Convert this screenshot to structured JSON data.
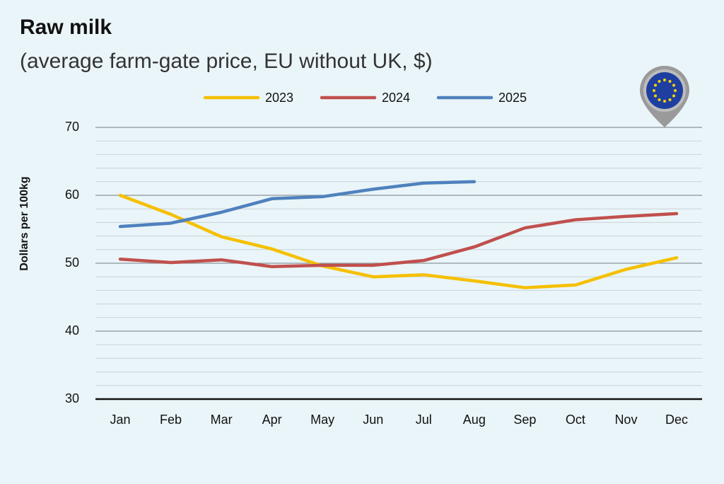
{
  "chart_data": {
    "type": "line",
    "title": "Raw milk",
    "subtitle": "(average farm-gate price, EU without UK, $)",
    "y_label": "Dollars per 100kg",
    "categories": [
      "Jan",
      "Feb",
      "Mar",
      "Apr",
      "May",
      "Jun",
      "Jul",
      "Aug",
      "Sep",
      "Oct",
      "Nov",
      "Dec"
    ],
    "series": [
      {
        "name": "2023",
        "color": "#f5c000",
        "values": [
          60.0,
          57.2,
          53.9,
          52.1,
          49.6,
          48.0,
          48.3,
          47.4,
          46.4,
          46.8,
          49.1,
          50.8
        ]
      },
      {
        "name": "2024",
        "color": "#c0504d",
        "values": [
          50.6,
          50.1,
          50.5,
          49.5,
          49.7,
          49.7,
          50.4,
          52.4,
          55.2,
          56.4,
          56.9,
          57.3
        ]
      },
      {
        "name": "2025",
        "color": "#4f81bd",
        "values": [
          55.4,
          55.9,
          57.5,
          59.5,
          59.8,
          60.9,
          61.8,
          62.0,
          null,
          null,
          null,
          null
        ]
      }
    ],
    "ylim": [
      30,
      70
    ],
    "yticks": [
      30,
      40,
      50,
      60,
      70
    ],
    "minor_yticks": [
      32,
      34,
      36,
      38,
      42,
      44,
      46,
      48,
      52,
      54,
      56,
      58,
      62,
      64,
      66,
      68
    ],
    "grid": true
  }
}
